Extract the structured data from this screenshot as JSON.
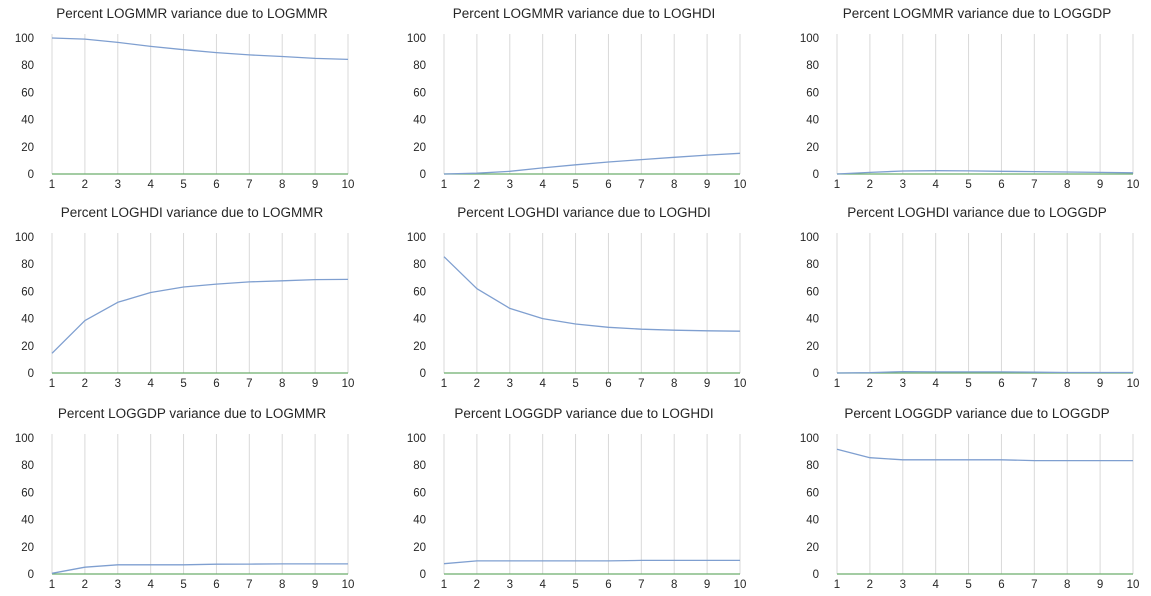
{
  "colors": {
    "response_line": "#7f9fd0",
    "zero_line": "#6cae6c",
    "grid": "#d9d9d9",
    "text": "#262626"
  },
  "chart_data": [
    {
      "type": "line",
      "title": "Percent LOGMMR variance due to LOGMMR",
      "x": [
        1,
        2,
        3,
        4,
        5,
        6,
        7,
        8,
        9,
        10
      ],
      "ylim": [
        0,
        100
      ],
      "yticks": [
        "0",
        "20",
        "40",
        "60",
        "80",
        "100"
      ],
      "grid": "vertical",
      "series": [
        {
          "values": [
            100,
            99.2,
            96.8,
            93.8,
            91.4,
            89.3,
            87.6,
            86.4,
            85.0,
            84.3
          ],
          "color": "#7f9fd0"
        },
        {
          "values": [
            0,
            0,
            0,
            0,
            0,
            0,
            0,
            0,
            0,
            0
          ],
          "color": "#6cae6c"
        }
      ]
    },
    {
      "type": "line",
      "title": "Percent LOGMMR variance due to LOGHDI",
      "x": [
        1,
        2,
        3,
        4,
        5,
        6,
        7,
        8,
        9,
        10
      ],
      "ylim": [
        0,
        100
      ],
      "yticks": [
        "0",
        "20",
        "40",
        "60",
        "80",
        "100"
      ],
      "grid": "vertical",
      "series": [
        {
          "values": [
            0,
            0.6,
            2.0,
            4.5,
            6.8,
            8.8,
            10.6,
            12.3,
            13.9,
            15.2
          ],
          "color": "#7f9fd0"
        },
        {
          "values": [
            0,
            0,
            0,
            0,
            0,
            0,
            0,
            0,
            0,
            0
          ],
          "color": "#6cae6c"
        }
      ]
    },
    {
      "type": "line",
      "title": "Percent LOGMMR variance due to LOGGDP",
      "x": [
        1,
        2,
        3,
        4,
        5,
        6,
        7,
        8,
        9,
        10
      ],
      "ylim": [
        0,
        100
      ],
      "yticks": [
        "0",
        "20",
        "40",
        "60",
        "80",
        "100"
      ],
      "grid": "vertical",
      "series": [
        {
          "values": [
            0,
            1.2,
            2.2,
            2.4,
            2.3,
            2.0,
            1.8,
            1.5,
            1.2,
            0.9
          ],
          "color": "#7f9fd0"
        },
        {
          "values": [
            0,
            0,
            0,
            0,
            0,
            0,
            0,
            0,
            0,
            0
          ],
          "color": "#6cae6c"
        }
      ]
    },
    {
      "type": "line",
      "title": "Percent LOGHDI variance due to LOGMMR",
      "x": [
        1,
        2,
        3,
        4,
        5,
        6,
        7,
        8,
        9,
        10
      ],
      "ylim": [
        0,
        100
      ],
      "yticks": [
        "0",
        "20",
        "40",
        "60",
        "80",
        "100"
      ],
      "grid": "vertical",
      "series": [
        {
          "values": [
            14.5,
            38.5,
            52.0,
            59.2,
            63.2,
            65.4,
            67.0,
            67.8,
            68.7,
            68.8
          ],
          "color": "#7f9fd0"
        },
        {
          "values": [
            0,
            0,
            0,
            0,
            0,
            0,
            0,
            0,
            0,
            0
          ],
          "color": "#6cae6c"
        }
      ]
    },
    {
      "type": "line",
      "title": "Percent LOGHDI variance due to LOGHDI",
      "x": [
        1,
        2,
        3,
        4,
        5,
        6,
        7,
        8,
        9,
        10
      ],
      "ylim": [
        0,
        100
      ],
      "yticks": [
        "0",
        "20",
        "40",
        "60",
        "80",
        "100"
      ],
      "grid": "vertical",
      "series": [
        {
          "values": [
            85.5,
            62.0,
            47.5,
            40.0,
            36.0,
            33.6,
            32.2,
            31.5,
            31.0,
            30.7
          ],
          "color": "#7f9fd0"
        },
        {
          "values": [
            0,
            0,
            0,
            0,
            0,
            0,
            0,
            0,
            0,
            0
          ],
          "color": "#6cae6c"
        }
      ]
    },
    {
      "type": "line",
      "title": "Percent LOGHDI variance due to LOGGDP",
      "x": [
        1,
        2,
        3,
        4,
        5,
        6,
        7,
        8,
        9,
        10
      ],
      "ylim": [
        0,
        100
      ],
      "yticks": [
        "0",
        "20",
        "40",
        "60",
        "80",
        "100"
      ],
      "grid": "vertical",
      "series": [
        {
          "values": [
            0,
            0.2,
            1.0,
            0.8,
            0.8,
            0.8,
            0.6,
            0.4,
            0.4,
            0.4
          ],
          "color": "#7f9fd0"
        },
        {
          "values": [
            0,
            0,
            0,
            0,
            0,
            0,
            0,
            0,
            0,
            0
          ],
          "color": "#6cae6c"
        }
      ]
    },
    {
      "type": "line",
      "title": "Percent LOGGDP variance due to LOGMMR",
      "x": [
        1,
        2,
        3,
        4,
        5,
        6,
        7,
        8,
        9,
        10
      ],
      "ylim": [
        0,
        100
      ],
      "yticks": [
        "0",
        "20",
        "40",
        "60",
        "80",
        "100"
      ],
      "grid": "vertical",
      "series": [
        {
          "values": [
            0.5,
            5.0,
            6.8,
            6.8,
            6.8,
            7.2,
            7.3,
            7.4,
            7.4,
            7.4
          ],
          "color": "#7f9fd0"
        },
        {
          "values": [
            0,
            0,
            0,
            0,
            0,
            0,
            0,
            0,
            0,
            0
          ],
          "color": "#6cae6c"
        }
      ]
    },
    {
      "type": "line",
      "title": "Percent LOGGDP variance due to LOGHDI",
      "x": [
        1,
        2,
        3,
        4,
        5,
        6,
        7,
        8,
        9,
        10
      ],
      "ylim": [
        0,
        100
      ],
      "yticks": [
        "0",
        "20",
        "40",
        "60",
        "80",
        "100"
      ],
      "grid": "vertical",
      "series": [
        {
          "values": [
            7.6,
            9.6,
            9.6,
            9.6,
            9.6,
            9.6,
            10.0,
            10.0,
            10.0,
            10.0
          ],
          "color": "#7f9fd0"
        },
        {
          "values": [
            0,
            0,
            0,
            0,
            0,
            0,
            0,
            0,
            0,
            0
          ],
          "color": "#6cae6c"
        }
      ]
    },
    {
      "type": "line",
      "title": "Percent LOGGDP variance due to LOGGDP",
      "x": [
        1,
        2,
        3,
        4,
        5,
        6,
        7,
        8,
        9,
        10
      ],
      "ylim": [
        0,
        100
      ],
      "yticks": [
        "0",
        "20",
        "40",
        "60",
        "80",
        "100"
      ],
      "grid": "vertical",
      "series": [
        {
          "values": [
            91.8,
            85.5,
            84.0,
            84.0,
            84.0,
            84.0,
            83.4,
            83.4,
            83.4,
            83.4
          ],
          "color": "#7f9fd0"
        },
        {
          "values": [
            0,
            0,
            0,
            0,
            0,
            0,
            0,
            0,
            0,
            0
          ],
          "color": "#6cae6c"
        }
      ]
    }
  ]
}
